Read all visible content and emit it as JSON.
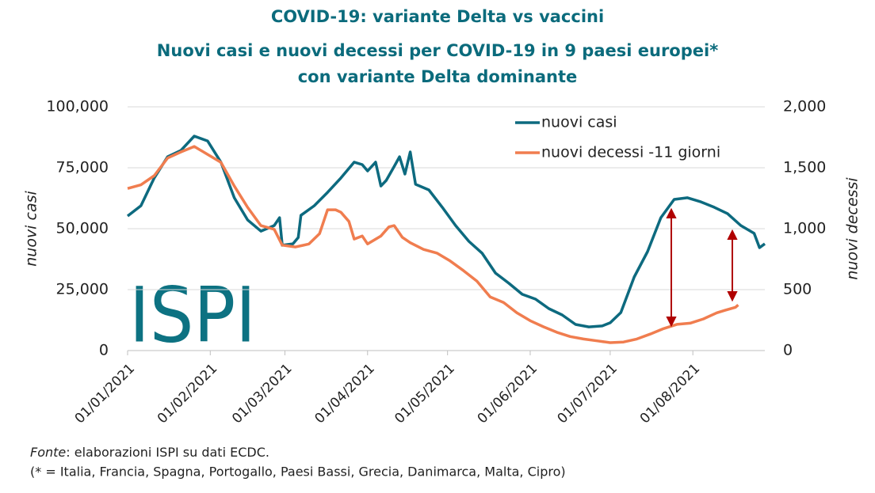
{
  "chart_data": {
    "type": "line",
    "title": "COVID-19: variante Delta vs vaccini",
    "subtitle": [
      "Nuovi casi e nuovi decessi per COVID-19 in 9 paesi europei*",
      "con variante Delta dominante"
    ],
    "ylabel": "nuovi casi",
    "y2label": "nuovi decessi",
    "logo": "ISPI",
    "source_label": "Fonte",
    "source": ": elaborazioni ISPI su dati ECDC.",
    "note": "(* = Italia, Francia, Spagna, Portogallo, Paesi Bassi, Grecia, Danimarca, Malta, Cipro)",
    "legend": "top-right",
    "grid": true,
    "xlim": [
      "2021-01-01",
      "2021-08-28"
    ],
    "xticks": [
      {
        "value": "2021-01-01",
        "label": "01/01/2021"
      },
      {
        "value": "2021-02-01",
        "label": "01/02/2021"
      },
      {
        "value": "2021-03-01",
        "label": "01/03/2021"
      },
      {
        "value": "2021-04-01",
        "label": "01/04/2021"
      },
      {
        "value": "2021-05-01",
        "label": "01/05/2021"
      },
      {
        "value": "2021-06-01",
        "label": "01/06/2021"
      },
      {
        "value": "2021-07-01",
        "label": "01/07/2021"
      },
      {
        "value": "2021-08-01",
        "label": "01/08/2021"
      }
    ],
    "ylim": [
      0,
      100000
    ],
    "yticks": [
      0,
      {
        "value": 25000,
        "label": "25,000"
      },
      {
        "value": 50000,
        "label": "50,000"
      },
      {
        "value": 75000,
        "label": "75,000"
      },
      {
        "value": 100000,
        "label": "100,000"
      }
    ],
    "y2lim": [
      0,
      2000
    ],
    "y2ticks": [
      0,
      500,
      {
        "value": 1000,
        "label": "1,000"
      },
      {
        "value": 1500,
        "label": "1,500"
      },
      {
        "value": 2000,
        "label": "2,000"
      }
    ],
    "series": [
      {
        "name": "nuovi casi",
        "color": "#0d6a7f",
        "x": [
          "2021-01-01",
          "2021-01-06",
          "2021-01-11",
          "2021-01-16",
          "2021-01-21",
          "2021-01-26",
          "2021-01-31",
          "2021-02-05",
          "2021-02-10",
          "2021-02-15",
          "2021-02-20",
          "2021-02-25",
          "2021-02-27",
          "2021-02-28",
          "2021-03-04",
          "2021-03-06",
          "2021-03-07",
          "2021-03-12",
          "2021-03-17",
          "2021-03-22",
          "2021-03-27",
          "2021-03-30",
          "2021-04-01",
          "2021-04-04",
          "2021-04-06",
          "2021-04-08",
          "2021-04-11",
          "2021-04-13",
          "2021-04-15",
          "2021-04-17",
          "2021-04-19",
          "2021-04-24",
          "2021-04-29",
          "2021-05-04",
          "2021-05-09",
          "2021-05-14",
          "2021-05-19",
          "2021-05-24",
          "2021-05-29",
          "2021-06-03",
          "2021-06-08",
          "2021-06-13",
          "2021-06-18",
          "2021-06-23",
          "2021-06-28",
          "2021-07-01",
          "2021-07-05",
          "2021-07-10",
          "2021-07-15",
          "2021-07-20",
          "2021-07-25",
          "2021-07-30",
          "2021-08-04",
          "2021-08-09",
          "2021-08-14",
          "2021-08-19",
          "2021-08-24",
          "2021-08-26",
          "2021-08-28"
        ],
        "values": [
          55200,
          59400,
          70800,
          79500,
          82100,
          88000,
          86000,
          77300,
          62700,
          53600,
          49000,
          51300,
          54500,
          43200,
          43800,
          46400,
          55500,
          59400,
          64900,
          70800,
          77300,
          76300,
          73700,
          77300,
          67500,
          69800,
          75600,
          79500,
          72400,
          81500,
          68200,
          65900,
          58800,
          51300,
          44800,
          39900,
          31800,
          27600,
          23100,
          21100,
          17200,
          14600,
          10700,
          9700,
          10100,
          11400,
          15600,
          30200,
          40600,
          54500,
          62000,
          62700,
          61000,
          58800,
          56200,
          51300,
          48100,
          42200,
          43800
        ]
      },
      {
        "name": "nuovi decessi -11 giorni",
        "color": "#f07d4f",
        "axis": "y2",
        "x": [
          "2021-01-01",
          "2021-01-06",
          "2021-01-11",
          "2021-01-16",
          "2021-01-21",
          "2021-01-26",
          "2021-01-31",
          "2021-02-05",
          "2021-02-10",
          "2021-02-15",
          "2021-02-20",
          "2021-02-25",
          "2021-02-28",
          "2021-03-05",
          "2021-03-10",
          "2021-03-14",
          "2021-03-17",
          "2021-03-20",
          "2021-03-22",
          "2021-03-25",
          "2021-03-27",
          "2021-03-30",
          "2021-04-01",
          "2021-04-06",
          "2021-04-09",
          "2021-04-11",
          "2021-04-14",
          "2021-04-17",
          "2021-04-22",
          "2021-04-27",
          "2021-05-02",
          "2021-05-07",
          "2021-05-12",
          "2021-05-17",
          "2021-05-22",
          "2021-05-27",
          "2021-06-01",
          "2021-06-06",
          "2021-06-11",
          "2021-06-16",
          "2021-06-21",
          "2021-06-26",
          "2021-07-01",
          "2021-07-06",
          "2021-07-11",
          "2021-07-16",
          "2021-07-21",
          "2021-07-26",
          "2021-07-31",
          "2021-08-05",
          "2021-08-10",
          "2021-08-13",
          "2021-08-17",
          "2021-08-18"
        ],
        "values": [
          1330,
          1360,
          1435,
          1580,
          1630,
          1675,
          1610,
          1545,
          1350,
          1175,
          1025,
          995,
          865,
          850,
          875,
          960,
          1155,
          1155,
          1135,
          1060,
          915,
          940,
          875,
          940,
          1015,
          1025,
          930,
          885,
          830,
          800,
          735,
          655,
          570,
          440,
          395,
          310,
          245,
          195,
          150,
          115,
          95,
          80,
          65,
          70,
          95,
          135,
          180,
          215,
          225,
          260,
          310,
          330,
          355,
          375
        ]
      }
    ]
  }
}
